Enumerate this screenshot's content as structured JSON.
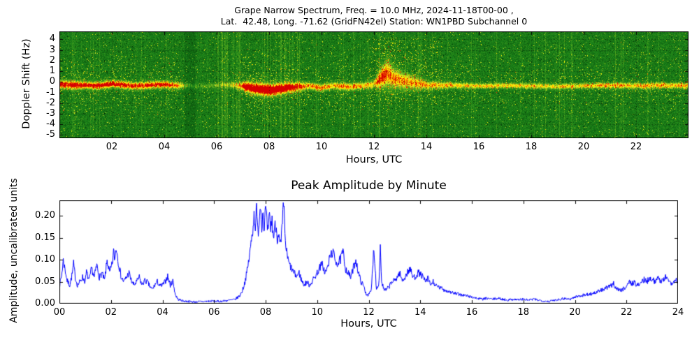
{
  "figure": {
    "background": "#ffffff",
    "text_color": "#000000"
  },
  "chart_data": [
    {
      "type": "heatmap",
      "name": "doppler-spectrogram",
      "title_line1": "Grape Narrow Spectrum, Freq. = 10.0 MHz, 2024-11-18T00-00 ,",
      "title_line2": "Lat.  42.48, Long. -71.62 (GridFN42el) Station: WN1PBD Subchannel 0",
      "xlabel": "Hours, UTC",
      "ylabel": "Doppler Shift (Hz)",
      "xlim": [
        0,
        24
      ],
      "ylim": [
        -5.3,
        4.75
      ],
      "xticks": [
        "02",
        "04",
        "06",
        "08",
        "10",
        "12",
        "14",
        "16",
        "18",
        "20",
        "22"
      ],
      "yticks": [
        4,
        3,
        2,
        1,
        0,
        -1,
        -2,
        -3,
        -4,
        -5
      ],
      "grid": "dotted-black",
      "colormap_stops": [
        [
          0.0,
          [
            0,
            40,
            0
          ]
        ],
        [
          0.3,
          [
            25,
            130,
            25
          ]
        ],
        [
          0.5,
          [
            100,
            175,
            30
          ]
        ],
        [
          0.65,
          [
            210,
            220,
            40
          ]
        ],
        [
          0.75,
          [
            255,
            255,
            0
          ]
        ],
        [
          0.87,
          [
            255,
            150,
            0
          ]
        ],
        [
          1.0,
          [
            215,
            0,
            0
          ]
        ]
      ],
      "band_keyframes": [
        [
          0.0,
          -0.15,
          0.35,
          0.8
        ],
        [
          0.5,
          -0.3,
          0.35,
          0.85
        ],
        [
          1.0,
          -0.25,
          0.3,
          0.8
        ],
        [
          1.5,
          -0.35,
          0.3,
          0.85
        ],
        [
          2.0,
          -0.15,
          0.3,
          0.9
        ],
        [
          2.5,
          -0.3,
          0.3,
          0.8
        ],
        [
          3.0,
          -0.35,
          0.3,
          0.75
        ],
        [
          3.5,
          -0.25,
          0.3,
          0.8
        ],
        [
          4.0,
          -0.2,
          0.3,
          0.8
        ],
        [
          4.4,
          -0.3,
          0.28,
          0.7
        ],
        [
          4.7,
          -0.3,
          0.25,
          0.4
        ],
        [
          5.0,
          -0.35,
          0.2,
          0.2
        ],
        [
          5.5,
          -0.35,
          0.2,
          0.15
        ],
        [
          6.0,
          -0.3,
          0.2,
          0.22
        ],
        [
          6.5,
          -0.25,
          0.25,
          0.3
        ],
        [
          6.9,
          -0.35,
          0.3,
          0.6
        ],
        [
          7.1,
          -0.45,
          0.45,
          1.0
        ],
        [
          7.5,
          -0.6,
          0.5,
          1.05
        ],
        [
          8.0,
          -0.75,
          0.5,
          1.05
        ],
        [
          8.5,
          -0.6,
          0.45,
          1.0
        ],
        [
          9.0,
          -0.45,
          0.4,
          0.8
        ],
        [
          9.5,
          -0.35,
          0.3,
          0.6
        ],
        [
          10.0,
          -0.5,
          0.3,
          0.65
        ],
        [
          10.5,
          -0.3,
          0.3,
          0.6
        ],
        [
          11.0,
          -0.45,
          0.3,
          0.65
        ],
        [
          11.5,
          -0.35,
          0.3,
          0.55
        ],
        [
          12.0,
          -0.2,
          0.35,
          0.5
        ],
        [
          12.3,
          0.5,
          0.9,
          0.8
        ],
        [
          12.5,
          0.8,
          1.1,
          0.7
        ],
        [
          12.8,
          0.3,
          0.8,
          0.6
        ],
        [
          13.2,
          0.1,
          0.7,
          0.55
        ],
        [
          13.6,
          -0.1,
          0.5,
          0.55
        ],
        [
          14.0,
          -0.25,
          0.35,
          0.55
        ],
        [
          15.0,
          -0.3,
          0.25,
          0.55
        ],
        [
          16.0,
          -0.35,
          0.22,
          0.5
        ],
        [
          17.0,
          -0.3,
          0.22,
          0.5
        ],
        [
          18.0,
          -0.35,
          0.22,
          0.5
        ],
        [
          19.0,
          -0.4,
          0.22,
          0.48
        ],
        [
          20.0,
          -0.35,
          0.22,
          0.52
        ],
        [
          21.0,
          -0.3,
          0.25,
          0.58
        ],
        [
          22.0,
          -0.35,
          0.25,
          0.55
        ],
        [
          23.0,
          -0.3,
          0.25,
          0.6
        ],
        [
          24.0,
          -0.35,
          0.25,
          0.55
        ]
      ]
    },
    {
      "type": "line",
      "name": "peak-amplitude-by-minute",
      "title": "Peak Amplitude by Minute",
      "xlabel": "Hours, UTC",
      "ylabel": "Amplitude, uncalibrated units",
      "xlim": [
        0,
        24
      ],
      "ylim": [
        0,
        0.235
      ],
      "xticks": [
        "00",
        "02",
        "04",
        "06",
        "08",
        "10",
        "12",
        "14",
        "16",
        "18",
        "20",
        "22",
        "24"
      ],
      "yticks": [
        "0.00",
        "0.05",
        "0.10",
        "0.15",
        "0.20"
      ],
      "line_color": "#0000ff",
      "points": [
        [
          0.0,
          0.04
        ],
        [
          0.08,
          0.062
        ],
        [
          0.15,
          0.098
        ],
        [
          0.22,
          0.078
        ],
        [
          0.3,
          0.052
        ],
        [
          0.4,
          0.042
        ],
        [
          0.5,
          0.068
        ],
        [
          0.55,
          0.09
        ],
        [
          0.62,
          0.058
        ],
        [
          0.7,
          0.042
        ],
        [
          0.8,
          0.05
        ],
        [
          0.9,
          0.06
        ],
        [
          1.0,
          0.05
        ],
        [
          1.05,
          0.072
        ],
        [
          1.15,
          0.052
        ],
        [
          1.25,
          0.08
        ],
        [
          1.35,
          0.06
        ],
        [
          1.45,
          0.088
        ],
        [
          1.55,
          0.06
        ],
        [
          1.65,
          0.07
        ],
        [
          1.75,
          0.052
        ],
        [
          1.85,
          0.098
        ],
        [
          1.95,
          0.07
        ],
        [
          2.05,
          0.09
        ],
        [
          2.1,
          0.118
        ],
        [
          2.15,
          0.1
        ],
        [
          2.2,
          0.13
        ],
        [
          2.3,
          0.09
        ],
        [
          2.4,
          0.06
        ],
        [
          2.5,
          0.05
        ],
        [
          2.6,
          0.06
        ],
        [
          2.7,
          0.07
        ],
        [
          2.8,
          0.05
        ],
        [
          2.9,
          0.042
        ],
        [
          3.0,
          0.05
        ],
        [
          3.1,
          0.06
        ],
        [
          3.2,
          0.042
        ],
        [
          3.3,
          0.052
        ],
        [
          3.4,
          0.05
        ],
        [
          3.5,
          0.04
        ],
        [
          3.6,
          0.032
        ],
        [
          3.7,
          0.042
        ],
        [
          3.8,
          0.05
        ],
        [
          3.9,
          0.04
        ],
        [
          4.0,
          0.042
        ],
        [
          4.1,
          0.05
        ],
        [
          4.2,
          0.062
        ],
        [
          4.3,
          0.042
        ],
        [
          4.4,
          0.052
        ],
        [
          4.5,
          0.02
        ],
        [
          4.6,
          0.01
        ],
        [
          4.8,
          0.006
        ],
        [
          5.0,
          0.005
        ],
        [
          5.3,
          0.004
        ],
        [
          5.6,
          0.005
        ],
        [
          5.9,
          0.006
        ],
        [
          6.2,
          0.005
        ],
        [
          6.5,
          0.007
        ],
        [
          6.8,
          0.009
        ],
        [
          7.0,
          0.018
        ],
        [
          7.1,
          0.03
        ],
        [
          7.2,
          0.05
        ],
        [
          7.3,
          0.08
        ],
        [
          7.4,
          0.12
        ],
        [
          7.5,
          0.17
        ],
        [
          7.55,
          0.2
        ],
        [
          7.6,
          0.18
        ],
        [
          7.65,
          0.212
        ],
        [
          7.7,
          0.16
        ],
        [
          7.75,
          0.19
        ],
        [
          7.8,
          0.23
        ],
        [
          7.85,
          0.18
        ],
        [
          7.9,
          0.21
        ],
        [
          7.95,
          0.168
        ],
        [
          8.0,
          0.22
        ],
        [
          8.05,
          0.18
        ],
        [
          8.1,
          0.16
        ],
        [
          8.15,
          0.2
        ],
        [
          8.2,
          0.17
        ],
        [
          8.25,
          0.19
        ],
        [
          8.3,
          0.15
        ],
        [
          8.35,
          0.172
        ],
        [
          8.4,
          0.18
        ],
        [
          8.45,
          0.15
        ],
        [
          8.5,
          0.162
        ],
        [
          8.55,
          0.132
        ],
        [
          8.6,
          0.14
        ],
        [
          8.65,
          0.18
        ],
        [
          8.7,
          0.228
        ],
        [
          8.75,
          0.16
        ],
        [
          8.8,
          0.12
        ],
        [
          8.9,
          0.092
        ],
        [
          9.0,
          0.08
        ],
        [
          9.1,
          0.07
        ],
        [
          9.2,
          0.062
        ],
        [
          9.3,
          0.07
        ],
        [
          9.4,
          0.052
        ],
        [
          9.5,
          0.042
        ],
        [
          9.6,
          0.05
        ],
        [
          9.7,
          0.042
        ],
        [
          9.8,
          0.05
        ],
        [
          9.9,
          0.06
        ],
        [
          10.0,
          0.07
        ],
        [
          10.1,
          0.082
        ],
        [
          10.2,
          0.09
        ],
        [
          10.3,
          0.07
        ],
        [
          10.4,
          0.08
        ],
        [
          10.5,
          0.108
        ],
        [
          10.6,
          0.118
        ],
        [
          10.7,
          0.1
        ],
        [
          10.8,
          0.09
        ],
        [
          10.9,
          0.1
        ],
        [
          11.0,
          0.118
        ],
        [
          11.1,
          0.08
        ],
        [
          11.2,
          0.07
        ],
        [
          11.3,
          0.06
        ],
        [
          11.4,
          0.08
        ],
        [
          11.5,
          0.1
        ],
        [
          11.6,
          0.07
        ],
        [
          11.7,
          0.05
        ],
        [
          11.8,
          0.04
        ],
        [
          11.9,
          0.022
        ],
        [
          12.0,
          0.02
        ],
        [
          12.1,
          0.03
        ],
        [
          12.2,
          0.13
        ],
        [
          12.3,
          0.032
        ],
        [
          12.4,
          0.05
        ],
        [
          12.45,
          0.13
        ],
        [
          12.5,
          0.05
        ],
        [
          12.6,
          0.03
        ],
        [
          12.7,
          0.032
        ],
        [
          12.8,
          0.04
        ],
        [
          12.9,
          0.05
        ],
        [
          13.0,
          0.052
        ],
        [
          13.1,
          0.06
        ],
        [
          13.2,
          0.07
        ],
        [
          13.3,
          0.052
        ],
        [
          13.4,
          0.06
        ],
        [
          13.5,
          0.07
        ],
        [
          13.6,
          0.08
        ],
        [
          13.7,
          0.062
        ],
        [
          13.8,
          0.06
        ],
        [
          13.9,
          0.07
        ],
        [
          14.0,
          0.068
        ],
        [
          14.1,
          0.06
        ],
        [
          14.2,
          0.05
        ],
        [
          14.3,
          0.058
        ],
        [
          14.4,
          0.042
        ],
        [
          14.5,
          0.05
        ],
        [
          14.6,
          0.04
        ],
        [
          14.8,
          0.035
        ],
        [
          15.0,
          0.03
        ],
        [
          15.2,
          0.026
        ],
        [
          15.4,
          0.022
        ],
        [
          15.6,
          0.02
        ],
        [
          15.8,
          0.018
        ],
        [
          16.0,
          0.015
        ],
        [
          16.2,
          0.012
        ],
        [
          16.4,
          0.01
        ],
        [
          16.6,
          0.012
        ],
        [
          16.8,
          0.01
        ],
        [
          17.0,
          0.012
        ],
        [
          17.2,
          0.01
        ],
        [
          17.4,
          0.008
        ],
        [
          17.6,
          0.01
        ],
        [
          17.8,
          0.009
        ],
        [
          18.0,
          0.01
        ],
        [
          18.2,
          0.008
        ],
        [
          18.4,
          0.01
        ],
        [
          18.6,
          0.008
        ],
        [
          18.8,
          0.006
        ],
        [
          19.0,
          0.005
        ],
        [
          19.2,
          0.008
        ],
        [
          19.4,
          0.01
        ],
        [
          19.6,
          0.012
        ],
        [
          19.8,
          0.01
        ],
        [
          20.0,
          0.015
        ],
        [
          20.2,
          0.018
        ],
        [
          20.4,
          0.02
        ],
        [
          20.6,
          0.022
        ],
        [
          20.8,
          0.025
        ],
        [
          21.0,
          0.03
        ],
        [
          21.2,
          0.035
        ],
        [
          21.4,
          0.04
        ],
        [
          21.5,
          0.045
        ],
        [
          21.6,
          0.035
        ],
        [
          21.8,
          0.03
        ],
        [
          22.0,
          0.04
        ],
        [
          22.1,
          0.05
        ],
        [
          22.2,
          0.045
        ],
        [
          22.3,
          0.05
        ],
        [
          22.4,
          0.04
        ],
        [
          22.5,
          0.045
        ],
        [
          22.6,
          0.05
        ],
        [
          22.7,
          0.055
        ],
        [
          22.8,
          0.05
        ],
        [
          22.9,
          0.06
        ],
        [
          23.0,
          0.055
        ],
        [
          23.1,
          0.05
        ],
        [
          23.2,
          0.06
        ],
        [
          23.3,
          0.05
        ],
        [
          23.4,
          0.055
        ],
        [
          23.5,
          0.06
        ],
        [
          23.6,
          0.055
        ],
        [
          23.7,
          0.05
        ],
        [
          23.8,
          0.045
        ],
        [
          23.9,
          0.055
        ],
        [
          24.0,
          0.05
        ]
      ]
    }
  ]
}
